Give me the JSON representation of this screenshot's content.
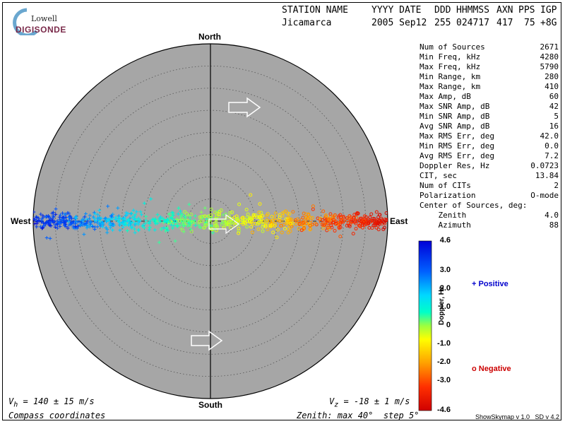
{
  "logo": {
    "top": "Lowell",
    "bottom": "DIGISONDE"
  },
  "header": {
    "cols": [
      "STATION NAME",
      "YYYY DATE",
      "DDD",
      "HHMMSS",
      "AXN",
      "PPS",
      "IGP"
    ],
    "vals": [
      "Jicamarca",
      "2005 Sep12",
      "255",
      "024717",
      "417",
      "75",
      "+8G"
    ]
  },
  "stats": [
    {
      "label": "Num of Sources",
      "value": "2671"
    },
    {
      "label": "Min Freq, kHz",
      "value": "4280"
    },
    {
      "label": "Max Freq, kHz",
      "value": "5790"
    },
    {
      "label": "Min Range, km",
      "value": "280"
    },
    {
      "label": "Max Range, km",
      "value": "410"
    },
    {
      "label": "Max Amp, dB",
      "value": "60"
    },
    {
      "label": "Max SNR Amp, dB",
      "value": "42"
    },
    {
      "label": "Min SNR Amp, dB",
      "value": "5"
    },
    {
      "label": "Avg SNR Amp, dB",
      "value": "16"
    },
    {
      "label": "Max RMS Err, deg",
      "value": "42.0"
    },
    {
      "label": "Min RMS Err, deg",
      "value": "0.0"
    },
    {
      "label": "Avg RMS Err, deg",
      "value": "7.2"
    },
    {
      "label": "Doppler Res, Hz",
      "value": "0.0723"
    },
    {
      "label": "CIT, sec",
      "value": "13.84"
    },
    {
      "label": "Num of CITs",
      "value": "2"
    },
    {
      "label": "Polarization",
      "value": "O-mode"
    },
    {
      "label": "Center of Sources, deg:",
      "value": ""
    },
    {
      "label": "    Zenith",
      "value": "4.0"
    },
    {
      "label": "    Azimuth",
      "value": "88"
    }
  ],
  "compass": {
    "north": "North",
    "south": "South",
    "east": "East",
    "west": "West"
  },
  "colorbar": {
    "title": "Doppler, Hz",
    "ticks": [
      "4.6",
      "3.0",
      "2.0",
      "1.0",
      "0",
      "-1.0",
      "-2.0",
      "-3.0",
      "-4.6"
    ],
    "tick_values": [
      4.6,
      3.0,
      2.0,
      1.0,
      0,
      -1.0,
      -2.0,
      -3.0,
      -4.6
    ]
  },
  "legend": {
    "positive": "Positive",
    "negative": "Negative",
    "positive_color": "#0000cc",
    "negative_color": "#cc0000"
  },
  "footer": {
    "vh": "V",
    "vh_sub": "h",
    "vh_rest": " = 140 ± 15 m/s",
    "vz": "V",
    "vz_sub": "z",
    "vz_rest": " = -18 ± 1 m/s",
    "coords": "Compass coordinates",
    "zenith": "Zenith: max 40°  step 5°",
    "version": "ShowSkymap v 1.0   SD v 4.2"
  },
  "chart_data": {
    "type": "scatter",
    "coordinate_system": "polar sky map",
    "zenith_max_deg": 40,
    "zenith_step_deg": 5,
    "num_sources": 2671,
    "center_of_sources": {
      "zenith_deg": 4.0,
      "azimuth_deg": 88
    },
    "velocity_h_m_s": "140 ± 15",
    "velocity_z_m_s": "-18 ± 1",
    "color_axis": {
      "label": "Doppler, Hz",
      "range": [
        -4.6,
        4.6
      ]
    },
    "series": [
      {
        "name": "Positive",
        "marker": "+",
        "cluster": {
          "azimuth_deg": 270,
          "zenith_range_deg": [
            0,
            40
          ],
          "doppler_hz": [
            0.5,
            4.6
          ]
        }
      },
      {
        "name": "Negative",
        "marker": "o",
        "cluster": {
          "azimuth_deg": 90,
          "zenith_range_deg": [
            0,
            40
          ],
          "doppler_hz": [
            -4.6,
            -0.2
          ]
        }
      }
    ],
    "grid": true,
    "colors": {
      "plot_bg": "#a6a6a6",
      "grid": "#555555"
    }
  }
}
